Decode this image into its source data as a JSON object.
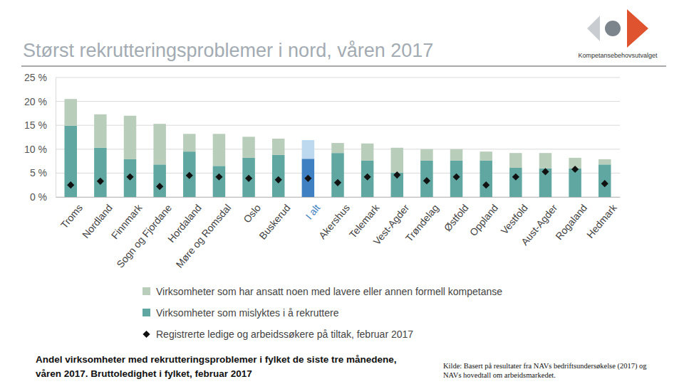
{
  "chart_data": {
    "type": "bar",
    "stacked": true,
    "title": "Størst rekrutteringsproblemer i nord, våren 2017",
    "logo_text": "Kompetansebehovsutvalget",
    "caption": [
      "Andel virksomheter med rekrutteringsproblemer i fylket de siste tre månedene,",
      "våren 2017. Bruttoledighet i fylket, februar 2017"
    ],
    "source": [
      "Kilde: Basert på resultater fra NAVs bedriftsundersøkelse (2017) og",
      "NAVs hovedtall om arbeidsmarkedet."
    ],
    "categories": [
      "Troms",
      "Nordland",
      "Finnmark",
      "Sogn og Fjordane",
      "Hordaland",
      "Møre og Romsdal",
      "Oslo",
      "Buskerud",
      "I alt",
      "Akershus",
      "Telemark",
      "Vest-Agder",
      "Trøndelag",
      "Østfold",
      "Oppland",
      "Vestfold",
      "Aust-Agder",
      "Rogaland",
      "Hedmark"
    ],
    "series": [
      {
        "name": "Virksomheter som mislyktes i å rekruttere",
        "type": "bar",
        "colors": [
          "#5fa7a0",
          "#5fa7a0",
          "#5fa7a0",
          "#5fa7a0",
          "#5fa7a0",
          "#5fa7a0",
          "#5fa7a0",
          "#5fa7a0",
          "#3f80c2",
          "#5fa7a0",
          "#5fa7a0",
          "#5fa7a0",
          "#5fa7a0",
          "#5fa7a0",
          "#5fa7a0",
          "#5fa7a0",
          "#5fa7a0",
          "#5fa7a0",
          "#5fa7a0"
        ],
        "values": [
          14.9,
          10.3,
          7.9,
          6.8,
          9.5,
          6.5,
          8.2,
          8.8,
          8.0,
          9.2,
          7.6,
          5.1,
          7.6,
          7.6,
          7.6,
          6.1,
          6.0,
          6.0,
          6.8
        ]
      },
      {
        "name": "Virksomheter som har ansatt noen med lavere eller annen formell kompetanse",
        "type": "bar",
        "colors": [
          "#b9cdbb",
          "#b9cdbb",
          "#b9cdbb",
          "#b9cdbb",
          "#b9cdbb",
          "#b9cdbb",
          "#b9cdbb",
          "#b9cdbb",
          "#bcd9f0",
          "#b9cdbb",
          "#b9cdbb",
          "#b9cdbb",
          "#b9cdbb",
          "#b9cdbb",
          "#b9cdbb",
          "#b9cdbb",
          "#b9cdbb",
          "#b9cdbb",
          "#b9cdbb"
        ],
        "values": [
          5.6,
          7.0,
          9.1,
          8.5,
          3.7,
          6.7,
          4.4,
          3.4,
          3.9,
          2.1,
          3.6,
          5.2,
          2.4,
          2.4,
          1.9,
          3.1,
          3.2,
          2.2,
          1.1
        ]
      },
      {
        "name": "Registrerte ledige og arbeidssøkere på tiltak, februar 2017",
        "type": "scatter",
        "marker": "diamond",
        "color": "#111111",
        "values": [
          2.5,
          3.3,
          4.2,
          2.2,
          4.5,
          4.2,
          3.9,
          3.6,
          3.9,
          3.0,
          4.2,
          4.6,
          3.4,
          4.2,
          2.5,
          4.2,
          5.3,
          5.8,
          2.8
        ]
      }
    ],
    "ylim": [
      0,
      25
    ],
    "yticks": [
      {
        "value": 0,
        "label": "0 %"
      },
      {
        "value": 5,
        "label": "5 %"
      },
      {
        "value": 10,
        "label": "10 %"
      },
      {
        "value": 15,
        "label": "15 %"
      },
      {
        "value": 20,
        "label": "20 %"
      },
      {
        "value": 25,
        "label": "25 %"
      }
    ],
    "grid": true,
    "legend": "bottom"
  }
}
